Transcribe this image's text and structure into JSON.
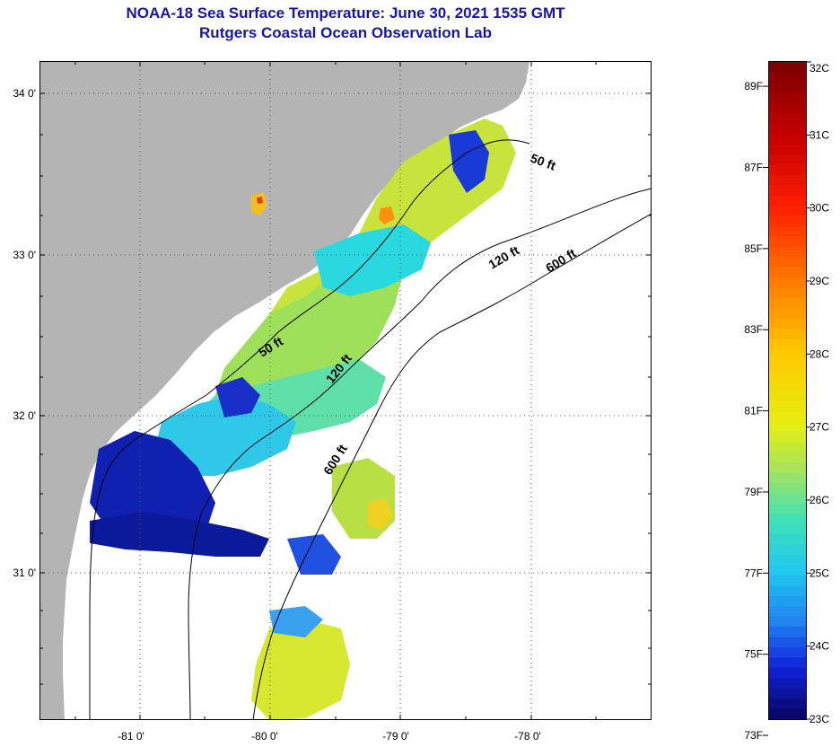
{
  "header": {
    "title": "NOAA-18 Sea Surface Temperature:  June 30, 2021 1535 GMT",
    "subtitle": "Rutgers Coastal Ocean Observation Lab"
  },
  "map": {
    "lat_labels": [
      {
        "label": "34 0'",
        "lat": 34.0
      },
      {
        "label": "33 0'",
        "lat": 33.0
      },
      {
        "label": "32 0'",
        "lat": 32.0
      },
      {
        "label": "31 0'",
        "lat": 31.0
      }
    ],
    "lon_labels": [
      {
        "label": "-81 0'",
        "lon": -81.0
      },
      {
        "label": "-80 0'",
        "lon": -80.0
      },
      {
        "label": "-79 0'",
        "lon": -79.0
      },
      {
        "label": "-78 0'",
        "lon": -78.0
      }
    ],
    "contours": [
      {
        "label": "50 ft"
      },
      {
        "label": "120 ft"
      },
      {
        "label": "600 ft"
      },
      {
        "label": "50 ft"
      },
      {
        "label": "120 ft"
      },
      {
        "label": "600 ft"
      }
    ],
    "colors": {
      "land": "#b4b4b4",
      "ocean": "#ffffff",
      "contour": "#000000"
    }
  },
  "colorbar": {
    "fahrenheit": [
      "89F",
      "87F",
      "85F",
      "83F",
      "81F",
      "79F",
      "77F",
      "75F",
      "73F"
    ],
    "celsius": [
      "32C",
      "31C",
      "30C",
      "29C",
      "28C",
      "27C",
      "26C",
      "25C",
      "24C",
      "23C"
    ],
    "min_c": 23,
    "max_c": 32
  }
}
